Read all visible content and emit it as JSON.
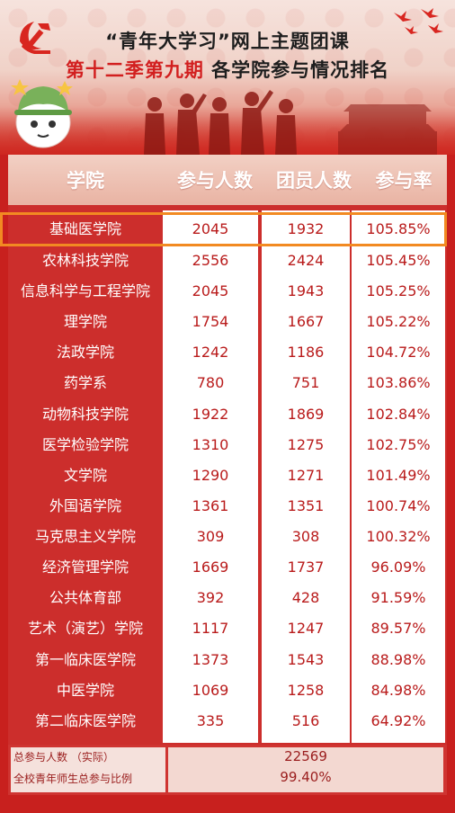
{
  "header": {
    "title_line1": "“青年大学习”网上主题团课",
    "title_line2_red": "第十二季第九期",
    "title_line2_rest": " 各学院参与情况排名"
  },
  "table": {
    "columns": [
      "学院",
      "参与人数",
      "团员人数",
      "参与率"
    ],
    "rows": [
      {
        "name": "基础医学院",
        "participants": "2045",
        "members": "1932",
        "rate": "105.85%"
      },
      {
        "name": "农林科技学院",
        "participants": "2556",
        "members": "2424",
        "rate": "105.45%"
      },
      {
        "name": "信息科学与工程学院",
        "participants": "2045",
        "members": "1943",
        "rate": "105.25%"
      },
      {
        "name": "理学院",
        "participants": "1754",
        "members": "1667",
        "rate": "105.22%"
      },
      {
        "name": "法政学院",
        "participants": "1242",
        "members": "1186",
        "rate": "104.72%"
      },
      {
        "name": "药学系",
        "participants": "780",
        "members": "751",
        "rate": "103.86%"
      },
      {
        "name": "动物科技学院",
        "participants": "1922",
        "members": "1869",
        "rate": "102.84%"
      },
      {
        "name": "医学检验学院",
        "participants": "1310",
        "members": "1275",
        "rate": "102.75%"
      },
      {
        "name": "文学院",
        "participants": "1290",
        "members": "1271",
        "rate": "101.49%"
      },
      {
        "name": "外国语学院",
        "participants": "1361",
        "members": "1351",
        "rate": "100.74%"
      },
      {
        "name": "马克思主义学院",
        "participants": "309",
        "members": "308",
        "rate": "100.32%"
      },
      {
        "name": "经济管理学院",
        "participants": "1669",
        "members": "1737",
        "rate": "96.09%"
      },
      {
        "name": "公共体育部",
        "participants": "392",
        "members": "428",
        "rate": "91.59%"
      },
      {
        "name": "艺术（演艺）学院",
        "participants": "1117",
        "members": "1247",
        "rate": "89.57%"
      },
      {
        "name": "第一临床医学院",
        "participants": "1373",
        "members": "1543",
        "rate": "88.98%"
      },
      {
        "name": "中医学院",
        "participants": "1069",
        "members": "1258",
        "rate": "84.98%"
      },
      {
        "name": "第二临床医学院",
        "participants": "335",
        "members": "516",
        "rate": "64.92%"
      }
    ]
  },
  "footer": {
    "total_label": "总参与人数 （实际）",
    "total_value": "22569",
    "ratio_label": "全校青年师生总参与比例",
    "ratio_value": "99.40%"
  },
  "colors": {
    "accent_red": "#d21f1f",
    "table_red": "#cc2e2c",
    "highlight_orange": "#f28a22"
  },
  "icons": [
    "party-emblem-icon",
    "dove-icon",
    "mascot-icon",
    "silhouette-figures-icon",
    "gate-tower-icon"
  ]
}
